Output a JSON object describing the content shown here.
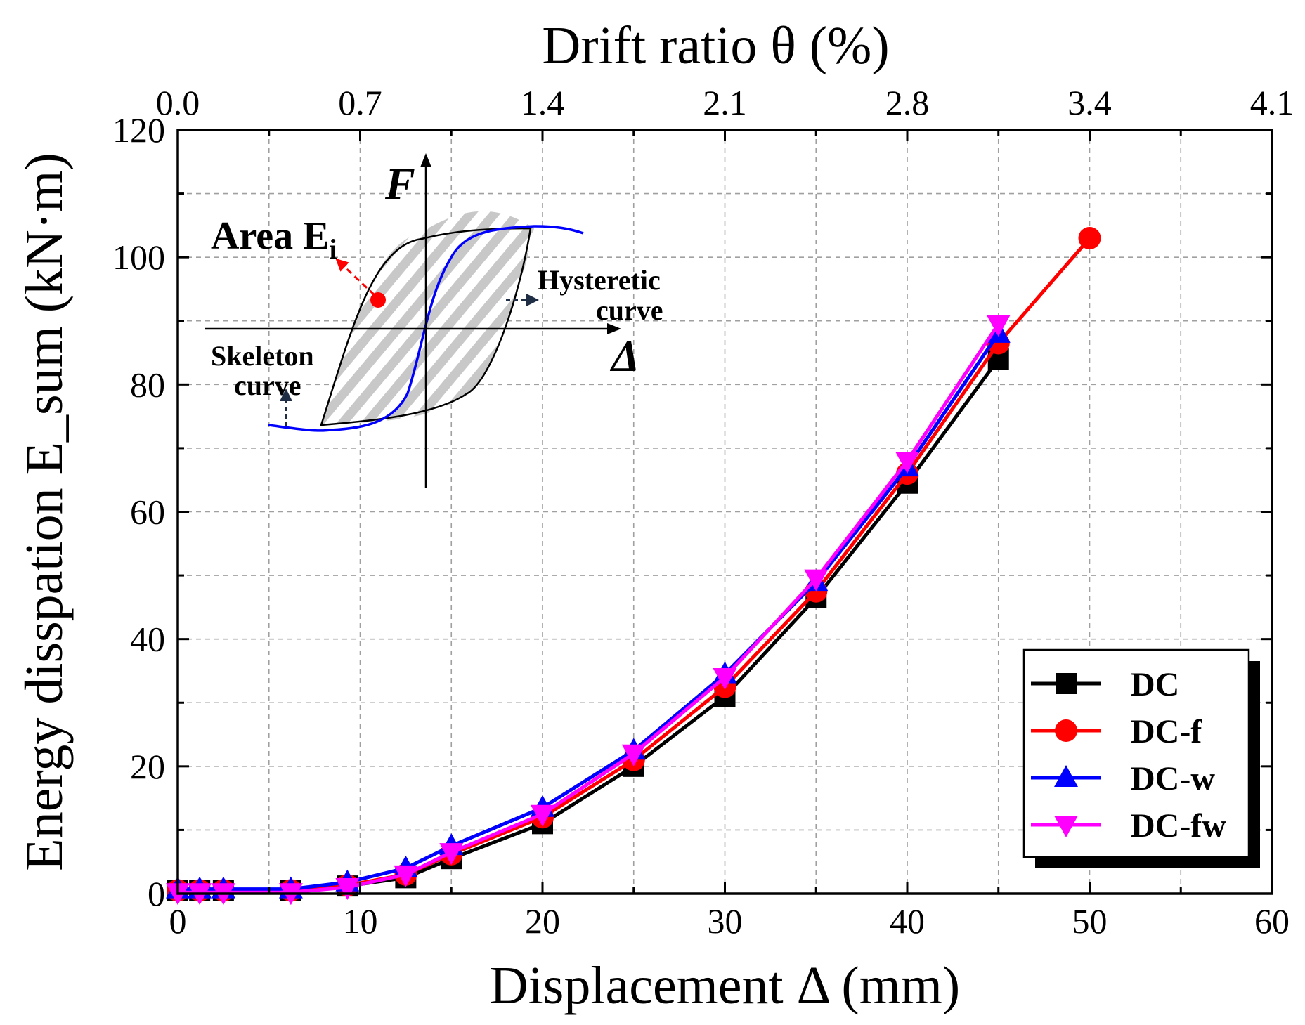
{
  "chart_data": {
    "type": "line",
    "title": "",
    "xlabel": "Displacement Δ (mm)",
    "ylabel": "Energy disspation E_sum (kN·m)",
    "x2label": "Drift ratio θ (%)",
    "xlim": [
      0,
      60
    ],
    "ylim": [
      0,
      120
    ],
    "x_ticks": [
      "0",
      "10",
      "20",
      "30",
      "40",
      "50",
      "60"
    ],
    "y_ticks": [
      "0",
      "20",
      "40",
      "60",
      "80",
      "100",
      "120"
    ],
    "x2_ticks": [
      "0.0",
      "0.7",
      "1.4",
      "2.1",
      "2.8",
      "3.4",
      "4.1"
    ],
    "grid": true,
    "legend_position": "bottom-right",
    "series": [
      {
        "name": "DC",
        "color": "#000000",
        "marker": "square",
        "x": [
          0,
          1.2,
          2.5,
          6.2,
          9.3,
          12.5,
          15,
          20,
          25,
          30,
          35,
          40,
          45
        ],
        "y": [
          0.5,
          0.5,
          0.5,
          0.5,
          1.2,
          2.5,
          5.5,
          11,
          20,
          31,
          46.5,
          64.5,
          84
        ]
      },
      {
        "name": "DC-f",
        "color": "#ff0000",
        "marker": "circle",
        "x": [
          0,
          1.2,
          2.5,
          6.2,
          9.3,
          12.5,
          15,
          20,
          25,
          30,
          35,
          40,
          45,
          50
        ],
        "y": [
          0.5,
          0.5,
          0.5,
          0.5,
          1.3,
          3,
          6.2,
          12,
          21,
          32.5,
          47.5,
          66,
          86.5,
          103
        ]
      },
      {
        "name": "DC-w",
        "color": "#0000ff",
        "marker": "triangle-up",
        "x": [
          0,
          1.2,
          2.5,
          6.2,
          9.3,
          12.5,
          15,
          20,
          25,
          30,
          35,
          40,
          45
        ],
        "y": [
          0.7,
          0.7,
          0.7,
          0.7,
          1.8,
          4,
          7.5,
          13.5,
          22.5,
          34.5,
          49,
          67,
          88
        ]
      },
      {
        "name": "DC-fw",
        "color": "#ff00ff",
        "marker": "triangle-down",
        "x": [
          0,
          1.2,
          2.5,
          6.2,
          9.3,
          12.5,
          15,
          20,
          25,
          30,
          35,
          40,
          45
        ],
        "y": [
          0.2,
          0.2,
          0.2,
          0.2,
          1,
          3,
          6.5,
          12.5,
          22,
          34,
          49.5,
          68,
          89.5
        ]
      }
    ]
  },
  "inset": {
    "force_label": "F",
    "displacement_label": "Δ",
    "area_label": "Area E",
    "area_subscript": "i",
    "hysteretic_line1": "Hysteretic",
    "hysteretic_line2": "curve",
    "skeleton_line1": "Skeleton",
    "skeleton_line2": "curve"
  }
}
